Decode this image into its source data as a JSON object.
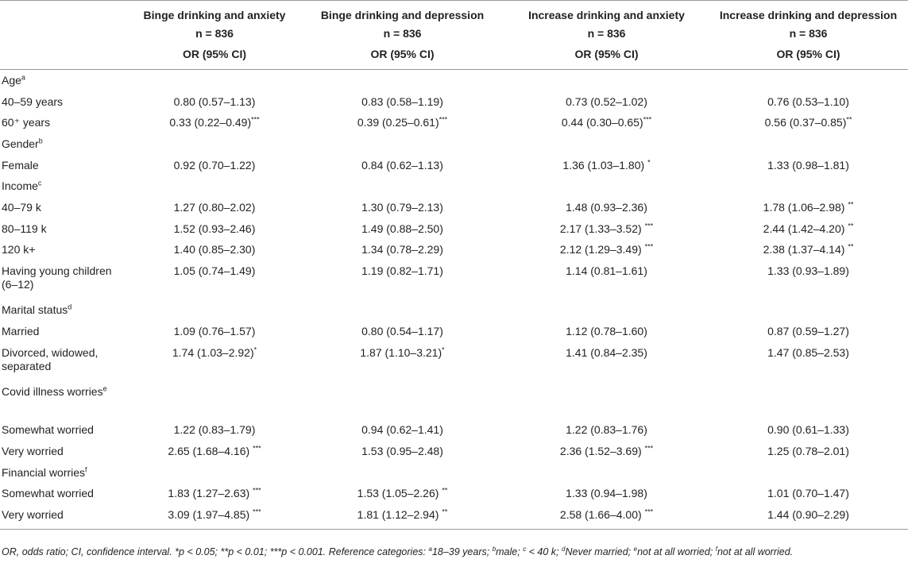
{
  "header": {
    "columns": [
      {
        "title": "Binge drinking and anxiety",
        "n": "n = 836",
        "stat": "OR (95% CI)"
      },
      {
        "title": "Binge drinking and depression",
        "n": "n = 836",
        "stat": "OR (95% CI)"
      },
      {
        "title": "Increase drinking and anxiety",
        "n": "n = 836",
        "stat": "OR (95% CI)"
      },
      {
        "title": "Increase drinking and depression",
        "n": "n = 836",
        "stat": "OR (95% CI)"
      }
    ]
  },
  "rows": [
    {
      "kind": "group",
      "label": "Age",
      "sup": "a"
    },
    {
      "kind": "data",
      "label": "40–59 years",
      "values": [
        {
          "v": "0.80 (0.57–1.13)",
          "sig": ""
        },
        {
          "v": "0.83 (0.58–1.19)",
          "sig": ""
        },
        {
          "v": "0.73 (0.52–1.02)",
          "sig": ""
        },
        {
          "v": "0.76 (0.53–1.10)",
          "sig": ""
        }
      ]
    },
    {
      "kind": "data",
      "label": "60⁺ years",
      "values": [
        {
          "v": "0.33 (0.22–0.49)",
          "sig": "***"
        },
        {
          "v": "0.39 (0.25–0.61)",
          "sig": "***"
        },
        {
          "v": "0.44 (0.30–0.65)",
          "sig": "***"
        },
        {
          "v": "0.56 (0.37–0.85)",
          "sig": "**"
        }
      ]
    },
    {
      "kind": "group",
      "label": "Gender",
      "sup": "b"
    },
    {
      "kind": "data",
      "label": "Female",
      "values": [
        {
          "v": "0.92 (0.70–1.22)",
          "sig": ""
        },
        {
          "v": "0.84 (0.62–1.13)",
          "sig": ""
        },
        {
          "v": "1.36 (1.03–1.80) ",
          "sig": "*"
        },
        {
          "v": "1.33 (0.98–1.81)",
          "sig": ""
        }
      ]
    },
    {
      "kind": "group",
      "label": "Income",
      "sup": "c"
    },
    {
      "kind": "data",
      "label": "40–79 k",
      "values": [
        {
          "v": "1.27 (0.80–2.02)",
          "sig": ""
        },
        {
          "v": "1.30 (0.79–2.13)",
          "sig": ""
        },
        {
          "v": "1.48 (0.93–2.36)",
          "sig": ""
        },
        {
          "v": "1.78 (1.06–2.98) ",
          "sig": "**"
        }
      ]
    },
    {
      "kind": "data",
      "label": "80–119 k",
      "values": [
        {
          "v": "1.52 (0.93–2.46)",
          "sig": ""
        },
        {
          "v": "1.49 (0.88–2.50)",
          "sig": ""
        },
        {
          "v": "2.17 (1.33–3.52) ",
          "sig": "***"
        },
        {
          "v": "2.44 (1.42–4.20) ",
          "sig": "**"
        }
      ]
    },
    {
      "kind": "data",
      "label": "120 k+",
      "values": [
        {
          "v": "1.40 (0.85–2.30)",
          "sig": ""
        },
        {
          "v": "1.34 (0.78–2.29)",
          "sig": ""
        },
        {
          "v": "2.12 (1.29–3.49) ",
          "sig": "***"
        },
        {
          "v": "2.38 (1.37–4.14) ",
          "sig": "**"
        }
      ]
    },
    {
      "kind": "data",
      "tall": true,
      "label": "Having young children (6–12)",
      "values": [
        {
          "v": "1.05 (0.74–1.49)",
          "sig": ""
        },
        {
          "v": "1.19 (0.82–1.71)",
          "sig": ""
        },
        {
          "v": "1.14 (0.81–1.61)",
          "sig": ""
        },
        {
          "v": "1.33 (0.93–1.89)",
          "sig": ""
        }
      ]
    },
    {
      "kind": "group",
      "label": "Marital status",
      "sup": "d"
    },
    {
      "kind": "data",
      "label": "Married",
      "values": [
        {
          "v": "1.09 (0.76–1.57)",
          "sig": ""
        },
        {
          "v": "0.80 (0.54–1.17)",
          "sig": ""
        },
        {
          "v": "1.12 (0.78–1.60)",
          "sig": ""
        },
        {
          "v": "0.87 (0.59–1.27)",
          "sig": ""
        }
      ]
    },
    {
      "kind": "data",
      "tall": true,
      "label": "Divorced, widowed, separated",
      "values": [
        {
          "v": "1.74 (1.03–2.92)",
          "sig": "*"
        },
        {
          "v": "1.87 (1.10–3.21)",
          "sig": "*"
        },
        {
          "v": "1.41 (0.84–2.35)",
          "sig": ""
        },
        {
          "v": "1.47 (0.85–2.53)",
          "sig": ""
        }
      ]
    },
    {
      "kind": "group",
      "tall": true,
      "label": "Covid illness worries",
      "sup": "e"
    },
    {
      "kind": "data",
      "label": "Somewhat worried",
      "values": [
        {
          "v": "1.22 (0.83–1.79)",
          "sig": ""
        },
        {
          "v": "0.94 (0.62–1.41)",
          "sig": ""
        },
        {
          "v": "1.22 (0.83–1.76)",
          "sig": ""
        },
        {
          "v": "0.90 (0.61–1.33)",
          "sig": ""
        }
      ]
    },
    {
      "kind": "data",
      "label": "Very worried",
      "values": [
        {
          "v": "2.65 (1.68–4.16) ",
          "sig": "***"
        },
        {
          "v": "1.53 (0.95–2.48)",
          "sig": ""
        },
        {
          "v": "2.36 (1.52–3.69) ",
          "sig": "***"
        },
        {
          "v": "1.25 (0.78–2.01)",
          "sig": ""
        }
      ]
    },
    {
      "kind": "group",
      "label": "Financial worries",
      "sup": "f"
    },
    {
      "kind": "data",
      "label": "Somewhat worried",
      "values": [
        {
          "v": "1.83 (1.27–2.63) ",
          "sig": "***"
        },
        {
          "v": "1.53 (1.05–2.26) ",
          "sig": "**"
        },
        {
          "v": "1.33 (0.94–1.98)",
          "sig": ""
        },
        {
          "v": "1.01 (0.70–1.47)",
          "sig": ""
        }
      ]
    },
    {
      "kind": "data",
      "last": true,
      "label": "Very worried",
      "values": [
        {
          "v": "3.09 (1.97–4.85) ",
          "sig": "***"
        },
        {
          "v": "1.81 (1.12–2.94) ",
          "sig": "**"
        },
        {
          "v": "2.58 (1.66–4.00) ",
          "sig": "***"
        },
        {
          "v": "1.44 (0.90–2.29)",
          "sig": ""
        }
      ]
    }
  ],
  "footnote": {
    "main": "OR, odds ratio; CI, confidence interval. *p < 0.05; **p < 0.01; ***p < 0.001. Reference categories: ",
    "refs": [
      {
        "sup": "a",
        "text": "18–39 years; "
      },
      {
        "sup": "b",
        "text": "male; "
      },
      {
        "sup": "c",
        "text": " < 40 k; "
      },
      {
        "sup": "d",
        "text": "Never married; "
      },
      {
        "sup": "e",
        "text": "not at all worried; "
      },
      {
        "sup": "f",
        "text": "not at all worried."
      }
    ]
  }
}
